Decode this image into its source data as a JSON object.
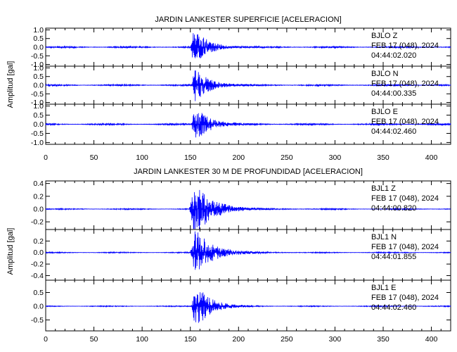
{
  "chart_data": [
    {
      "type": "line",
      "title": "JARDIN LANKESTER SUPERFICIE [ACELERACION]",
      "ylabel": "Amplitud [gal]",
      "xlim": [
        0,
        420
      ],
      "x_ticks": [
        "0",
        "50",
        "100",
        "150",
        "200",
        "250",
        "300",
        "350",
        "400"
      ],
      "series": [
        {
          "station": "BJLO",
          "component": "Z",
          "date": "FEB 17 (048), 2024",
          "time": "04:44:02.020",
          "ylim": [
            -1.1,
            1.1
          ],
          "y_ticks": [
            "1.0",
            "0.5",
            "0.0",
            "-0.5",
            "-1.0"
          ],
          "noise": 0.03,
          "peak": 1.05,
          "event_start": 150,
          "event_peak": 154,
          "decay": 14,
          "color": "#0000ff"
        },
        {
          "station": "BJLO",
          "component": "N",
          "date": "FEB 17 (048), 2024",
          "time": "04:44:00.335",
          "ylim": [
            -1.1,
            1.1
          ],
          "y_ticks": [
            "1.0",
            "0.5",
            "0.0",
            "-0.5",
            "-1.0"
          ],
          "noise": 0.03,
          "peak": 1.0,
          "event_start": 151,
          "event_peak": 155,
          "decay": 14,
          "color": "#0000ff"
        },
        {
          "station": "BJLO",
          "component": "E",
          "date": "FEB 17 (048), 2024",
          "time": "04:44:02.460",
          "ylim": [
            -1.1,
            1.1
          ],
          "y_ticks": [
            "1.0",
            "0.5",
            "0.0",
            "-0.5",
            "-1.0"
          ],
          "noise": 0.03,
          "peak": 1.0,
          "event_start": 151,
          "event_peak": 155,
          "decay": 14,
          "color": "#0000ff"
        }
      ]
    },
    {
      "type": "line",
      "title": "JARDIN LANKESTER 30 M DE PROFUNDIDAD [ACELERACION]",
      "ylabel": "Amplitud [gal]",
      "xlim": [
        0,
        420
      ],
      "x_ticks": [
        "0",
        "50",
        "100",
        "150",
        "200",
        "250",
        "300",
        "350",
        "400"
      ],
      "series": [
        {
          "station": "BJL1",
          "component": "Z",
          "date": "FEB 17 (048), 2024",
          "time": "04:44:00.820",
          "ylim": [
            -0.32,
            0.44
          ],
          "y_ticks": [
            "0.4",
            "0.2",
            "0.0",
            "-0.2"
          ],
          "noise": 0.006,
          "peak": 0.42,
          "event_start": 149,
          "event_peak": 155,
          "decay": 18,
          "color": "#0000ff"
        },
        {
          "station": "BJL1",
          "component": "N",
          "date": "FEB 17 (048), 2024",
          "time": "04:44:01.855",
          "ylim": [
            -0.48,
            0.4
          ],
          "y_ticks": [
            "0.2",
            "0.0",
            "-0.2",
            "-0.4"
          ],
          "noise": 0.006,
          "peak": 0.4,
          "event_start": 150,
          "event_peak": 155,
          "decay": 18,
          "color": "#0000ff"
        },
        {
          "station": "BJL1",
          "component": "E",
          "date": "FEB 17 (048), 2024",
          "time": "04:44:02.460",
          "ylim": [
            -0.9,
            0.95
          ],
          "y_ticks": [
            "0.5",
            "0.0",
            "-0.5"
          ],
          "noise": 0.012,
          "peak": 0.9,
          "event_start": 151,
          "event_peak": 155,
          "decay": 14,
          "color": "#0000ff"
        }
      ]
    }
  ]
}
